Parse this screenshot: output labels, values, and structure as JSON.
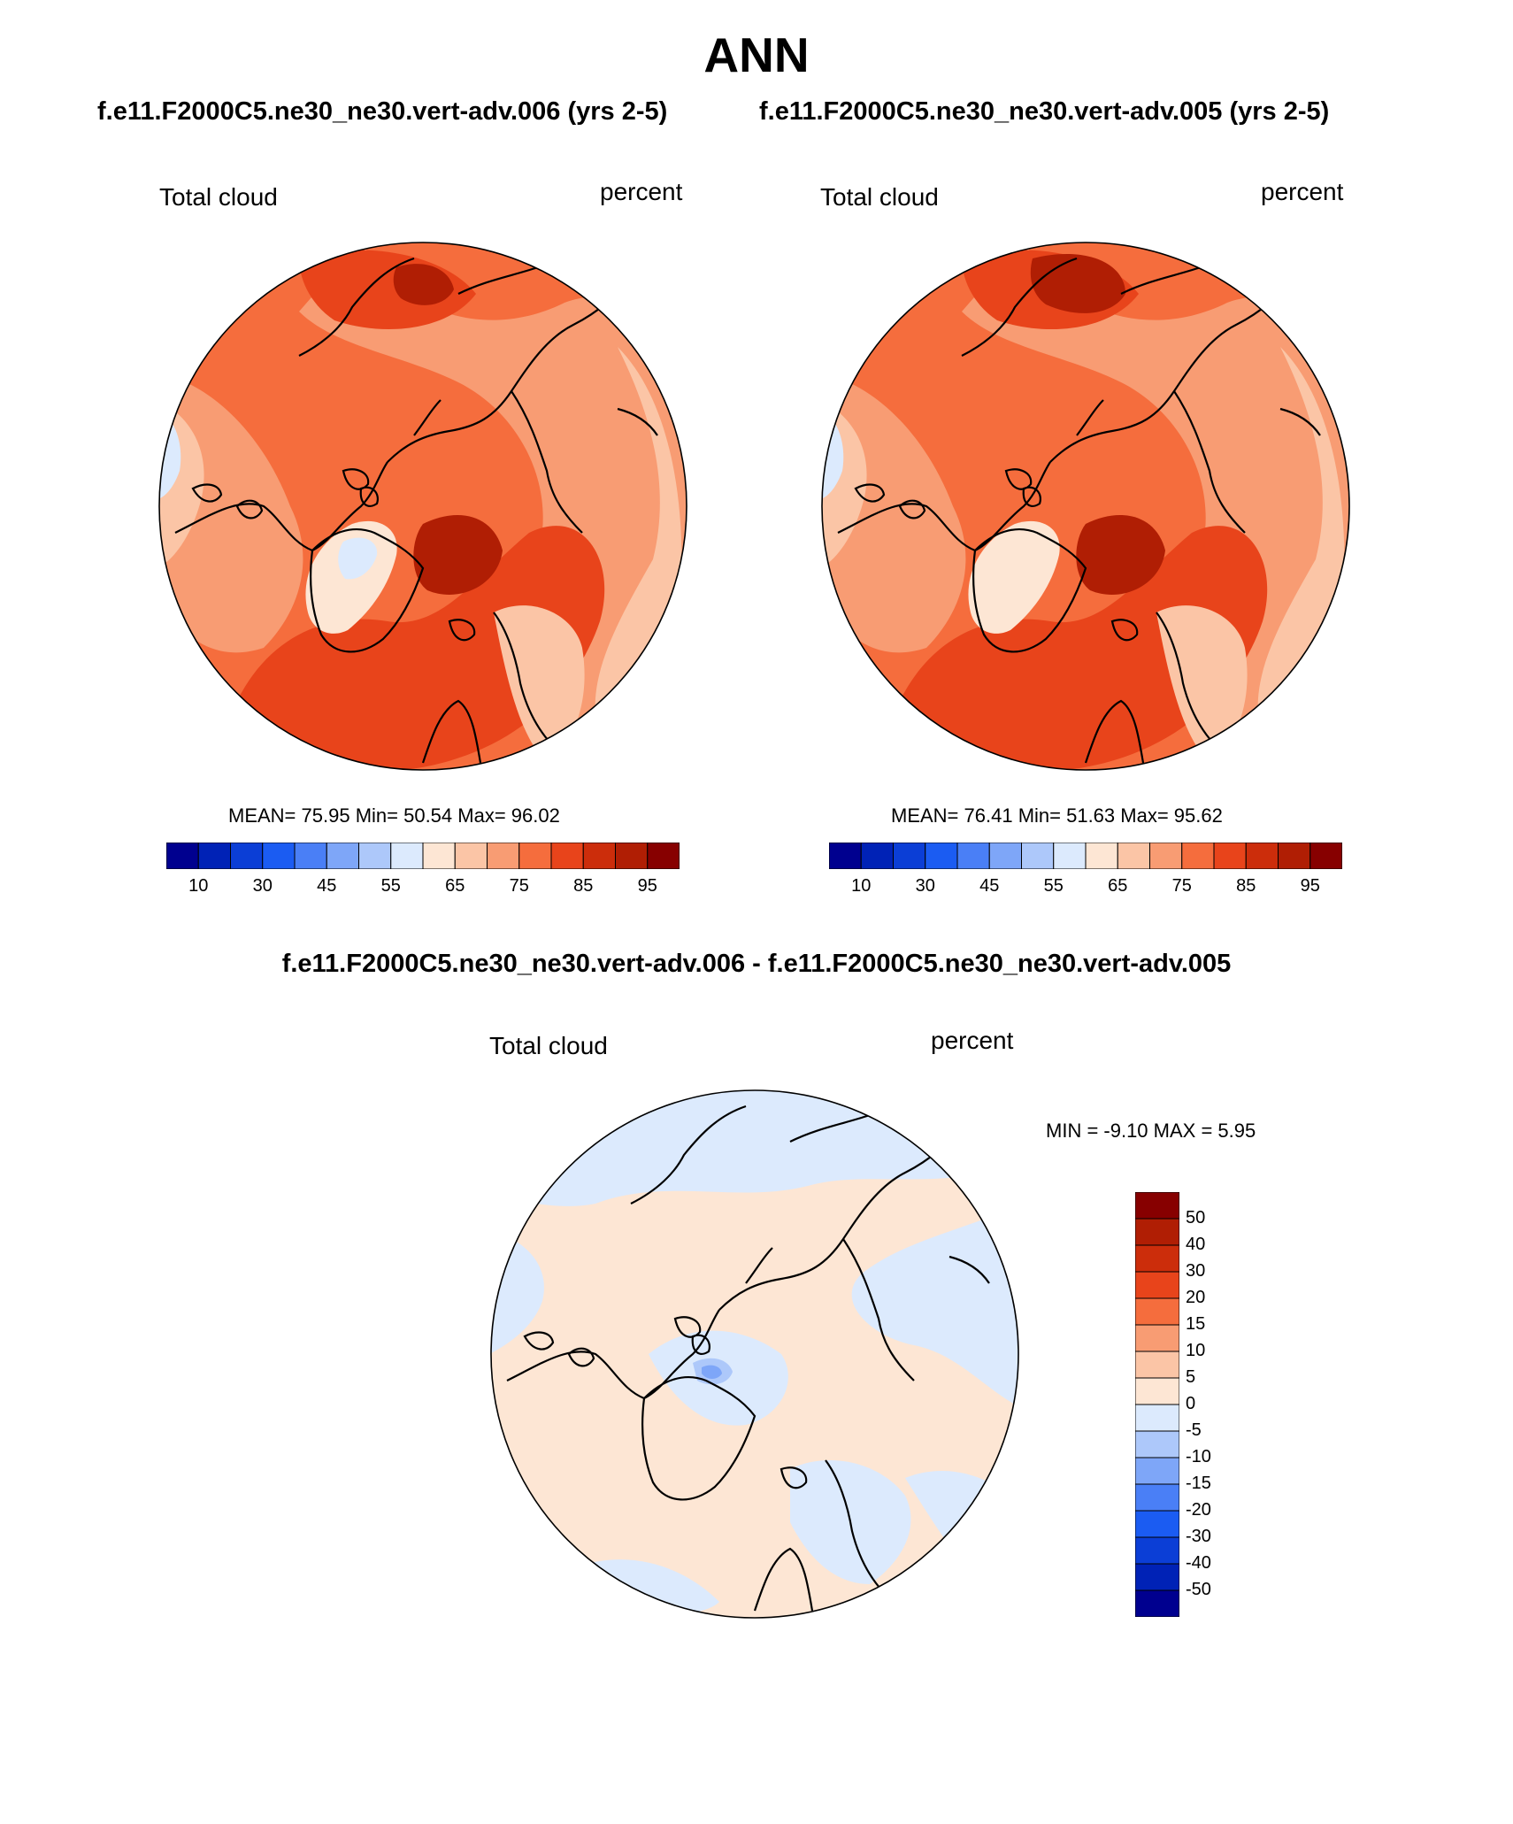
{
  "figure": {
    "title": "ANN",
    "left_case": "f.e11.F2000C5.ne30_ne30.vert-adv.006 (yrs 2-5)",
    "right_case": "f.e11.F2000C5.ne30_ne30.vert-adv.005 (yrs 2-5)",
    "diff_title": "f.e11.F2000C5.ne30_ne30.vert-adv.006 - f.e11.F2000C5.ne30_ne30.vert-adv.005"
  },
  "panels": [
    {
      "variable": "Total cloud",
      "units": "percent",
      "stats_text": "MEAN=  75.95  Min=  50.54  Max=  96.02",
      "mean": 75.95,
      "min": 50.54,
      "max": 96.02
    },
    {
      "variable": "Total cloud",
      "units": "percent",
      "stats_text": "MEAN=  76.41  Min=  51.63  Max=  95.62",
      "mean": 76.41,
      "min": 51.63,
      "max": 95.62
    }
  ],
  "diff_panel": {
    "variable": "Total cloud",
    "units": "percent",
    "stats_text": "MIN =  -9.10 MAX =   5.95",
    "min": -9.1,
    "max": 5.95
  },
  "abs_colorbar": {
    "colors": [
      "#00008f",
      "#0022b6",
      "#0b3ed6",
      "#1b5cf2",
      "#4a7ff6",
      "#7ea6f8",
      "#adc8fa",
      "#dceafd",
      "#fde6d4",
      "#fbc5a6",
      "#f89c73",
      "#f56d3d",
      "#e8441b",
      "#cc2d0b",
      "#b01e04",
      "#870000"
    ],
    "tick_labels": [
      "10",
      "30",
      "45",
      "55",
      "65",
      "75",
      "85",
      "95"
    ]
  },
  "diff_colorbar": {
    "colors": [
      "#870000",
      "#b01e04",
      "#cc2d0b",
      "#e8441b",
      "#f56d3d",
      "#f89c73",
      "#fbc5a6",
      "#fde6d4",
      "#dceafd",
      "#adc8fa",
      "#7ea6f8",
      "#4a7ff6",
      "#1b5cf2",
      "#0b3ed6",
      "#0022b6",
      "#00008f"
    ],
    "tick_labels": [
      "50",
      "40",
      "30",
      "20",
      "15",
      "10",
      "5",
      "0",
      "-5",
      "-10",
      "-15",
      "-20",
      "-30",
      "-40",
      "-50"
    ]
  },
  "map_palette": {
    "ocean_high": "#e8441b",
    "ocean_mid": "#f56d3d",
    "land_mid": "#f89c73",
    "land_low": "#fbc5a6",
    "greenland": "#fde6d4",
    "ice_low": "#dceafd",
    "peak": "#b01e04",
    "diff_pos": "#fde6d4",
    "diff_neg": "#dceafd",
    "diff_neg2": "#adc8fa",
    "diff_neg3": "#7ea6f8"
  }
}
